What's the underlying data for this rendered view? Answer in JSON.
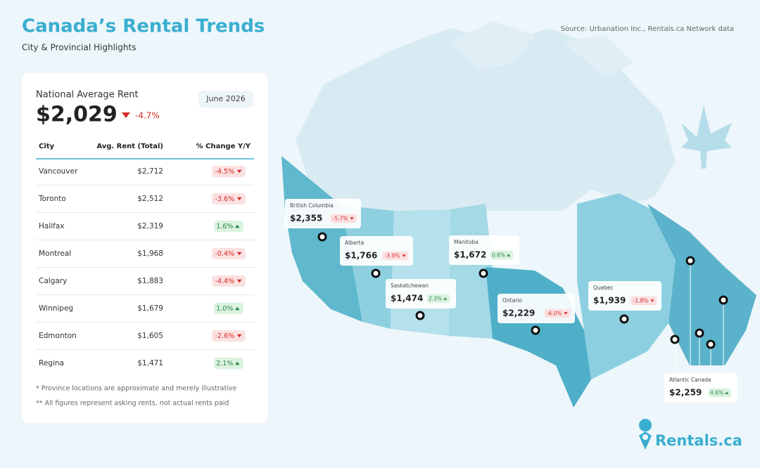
{
  "header": {
    "title": "Canada’s Rental Trends",
    "subtitle": "City & Provincial Highlights",
    "source": "Source: Urbanation Inc., Rentals.ca Network data"
  },
  "summary": {
    "label": "National Average Rent",
    "value": "$2,029",
    "change": "-4.7%",
    "date": "June 2026"
  },
  "table": {
    "columns": [
      "City",
      "Avg. Rent (Total)",
      "% Change Y/Y"
    ],
    "rows": [
      [
        "Vancouver",
        "$2,712",
        "-4.5%"
      ],
      [
        "Toronto",
        "$2,512",
        "-3.6%"
      ],
      [
        "Halifax",
        "$2,319",
        "1.6%"
      ],
      [
        "Montreal",
        "$1,968",
        "-0.4%"
      ],
      [
        "Calgary",
        "$1,883",
        "-4.4%"
      ],
      [
        "Winnipeg",
        "$1,679",
        "1.0%"
      ],
      [
        "Edmonton",
        "$1,605",
        "-2.6%"
      ],
      [
        "Regina",
        "$1,471",
        "2.1%"
      ]
    ]
  },
  "notes": [
    "* Province locations are approximate and merely illustrative",
    "** All figures represent asking rents, not actual rents paid"
  ],
  "provinces": [
    {
      "name": "British Columbia",
      "rent": "$2,355",
      "change": "-5.7%"
    },
    {
      "name": "Alberta",
      "rent": "$1,766",
      "change": "-3.9%"
    },
    {
      "name": "Saskatchewan",
      "rent": "$1,474",
      "change": "2.3%"
    },
    {
      "name": "Manitoba",
      "rent": "$1,672",
      "change": "0.6%"
    },
    {
      "name": "Ontario",
      "rent": "$2,229",
      "change": "-6.0%"
    },
    {
      "name": "Quebec",
      "rent": "$1,939",
      "change": "-1.8%"
    },
    {
      "name": "Atlantic Canada",
      "rent": "$2,259",
      "change": "4.6%"
    }
  ],
  "brand": "Rentals.ca"
}
